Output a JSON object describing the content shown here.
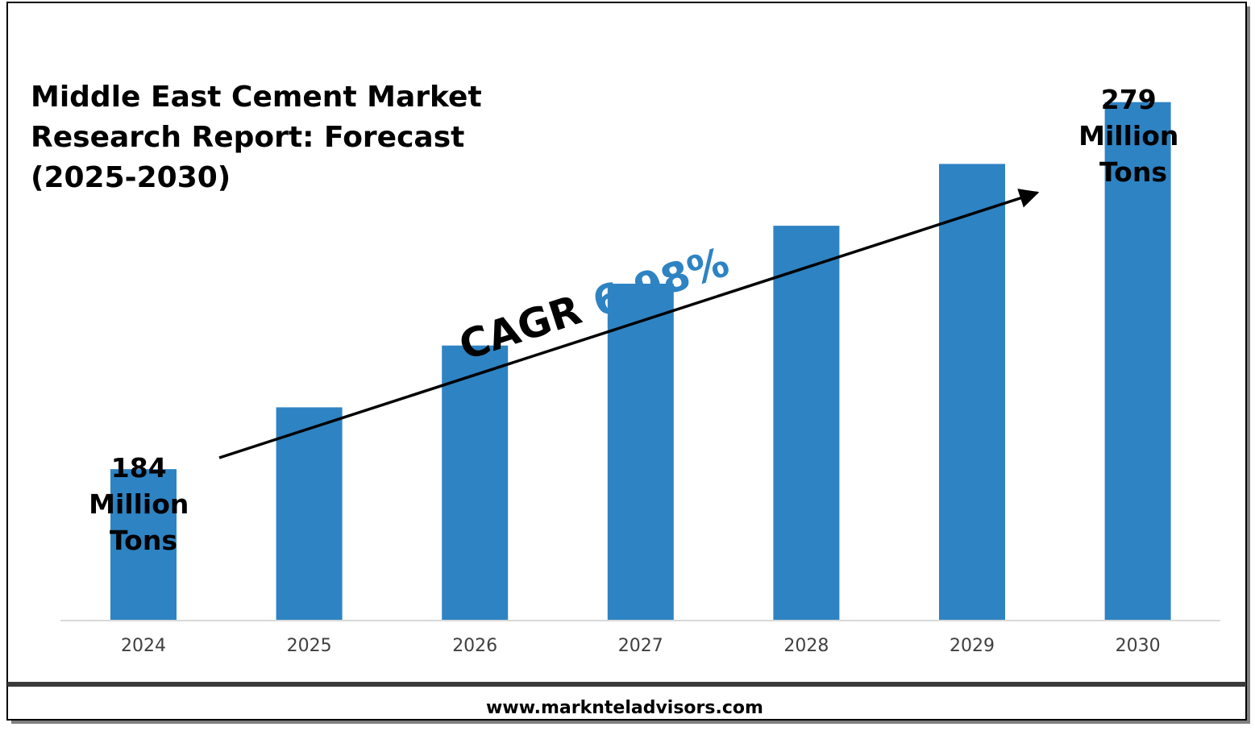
{
  "chart_data": {
    "type": "bar",
    "title_lines": [
      "Middle East Cement Market",
      "Research Report: Forecast",
      "(2025-2030)"
    ],
    "categories": [
      "2024",
      "2025",
      "2026",
      "2027",
      "2028",
      "2029",
      "2030"
    ],
    "values": [
      184,
      200,
      216,
      232,
      247,
      263,
      279
    ],
    "ylim": [
      145,
      295
    ],
    "bar_color": "#2E83C3",
    "grid": false,
    "data_labels": [
      {
        "category": "2024",
        "lines": [
          "184",
          "Million",
          "Tons"
        ]
      },
      {
        "category": "2030",
        "lines": [
          "279",
          "Million",
          "Tons"
        ]
      }
    ],
    "annotation": {
      "label": "CAGR",
      "value": "6.98%",
      "value_color": "#2E83C3"
    }
  },
  "footer": {
    "website": "www.marknteladvisors.com"
  }
}
